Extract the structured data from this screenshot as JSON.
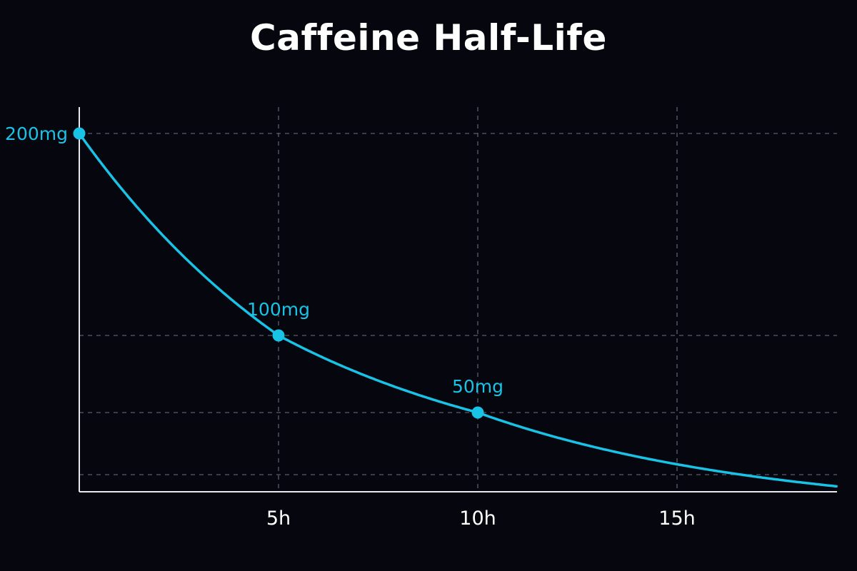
{
  "title": "Caffeine Half-Life",
  "colors": {
    "background": "#06060f",
    "line": "#19c3e6",
    "grid": "#5a5e6e",
    "axis": "#e8e8ee",
    "tick_text": "#ffffff"
  },
  "chart_data": {
    "type": "line",
    "title": "Caffeine Half-Life",
    "xlabel": "",
    "ylabel": "",
    "x_ticks": [
      {
        "value": 5,
        "label": "5h"
      },
      {
        "value": 10,
        "label": "10h"
      },
      {
        "value": 15,
        "label": "15h"
      }
    ],
    "y_gridlines": [
      200,
      100,
      50,
      20
    ],
    "xlim": [
      0,
      19
    ],
    "ylim": [
      12,
      227
    ],
    "grid": true,
    "half_life_hours": 5,
    "initial_dose_mg": 200,
    "series": [
      {
        "x": [
          0,
          1,
          2,
          3,
          4,
          5,
          6,
          7,
          8,
          9,
          10,
          11,
          12,
          13,
          14,
          15,
          16,
          17,
          18,
          19
        ],
        "y": [
          200,
          174,
          152,
          132,
          115,
          100,
          87,
          76,
          66,
          57,
          50,
          44,
          38,
          33,
          29,
          25,
          22,
          19,
          17,
          15
        ]
      }
    ],
    "labeled_points": [
      {
        "x": 0,
        "y": 200,
        "label": "200mg"
      },
      {
        "x": 5,
        "y": 100,
        "label": "100mg"
      },
      {
        "x": 10,
        "y": 50,
        "label": "50mg"
      }
    ]
  }
}
